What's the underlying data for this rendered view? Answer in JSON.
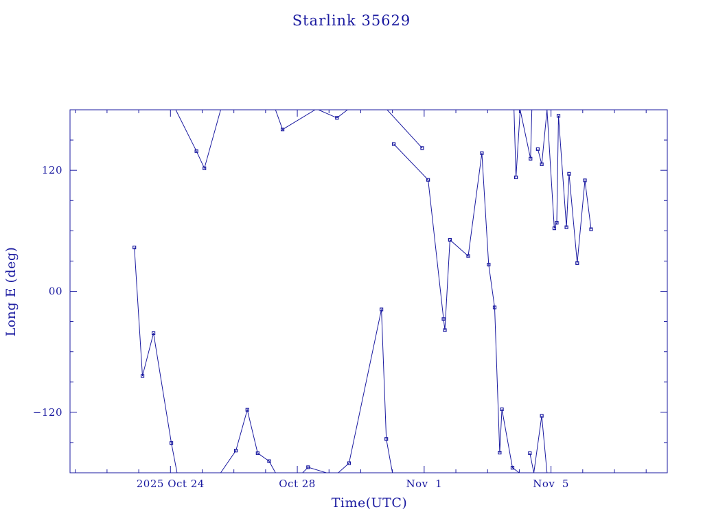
{
  "chart_data": {
    "type": "line",
    "title": "Starlink 35629",
    "xlabel": "Time(UTC)",
    "ylabel": "Long E (deg)",
    "xlim": [
      "2025-10-20T20:00",
      "2025-11-08T16:00"
    ],
    "ylim": [
      -180,
      180
    ],
    "x_tick_labels": [
      {
        "label": "2025 Oct 24",
        "at": "2025-10-24T00:00"
      },
      {
        "label": "Oct 28",
        "at": "2025-10-28T00:00"
      },
      {
        "label": "Nov  1",
        "at": "2025-11-01T00:00"
      },
      {
        "label": "Nov  5",
        "at": "2025-11-05T00:00"
      }
    ],
    "y_tick_labels": [
      {
        "label": "120",
        "value": 120
      },
      {
        "label": "00",
        "value": 0
      },
      {
        "label": "−120",
        "value": -120
      }
    ],
    "grid": false,
    "legend": "none",
    "color": "#1a1aa0",
    "series": [
      {
        "points": [
          [
            "2025-10-22T20:40",
            43.5
          ],
          [
            "2025-10-23T02:50",
            -84
          ],
          [
            "2025-10-23T11:10",
            -41.5
          ],
          [
            "2025-10-24T00:40",
            -150.5
          ],
          [
            "2025-10-24T05:00",
            -180
          ],
          [
            "2025-10-24T04:00",
            180
          ],
          [
            "2025-10-24T19:40",
            139
          ],
          [
            "2025-10-25T01:40",
            122
          ],
          [
            "2025-10-25T14:00",
            180
          ],
          [
            "2025-10-25T14:00",
            -180
          ],
          [
            "2025-10-26T01:30",
            -158
          ],
          [
            "2025-10-26T10:10",
            -117.5
          ],
          [
            "2025-10-26T18:00",
            -160.5
          ],
          [
            "2025-10-27T02:40",
            -168.5
          ],
          [
            "2025-10-27T07:30",
            -180
          ],
          [
            "2025-10-27T07:30",
            180
          ],
          [
            "2025-10-27T12:50",
            160.5
          ],
          [
            "2025-10-28T13:30",
            180
          ],
          [
            "2025-10-28T16:00",
            180
          ],
          [
            "2025-10-29T06:00",
            172
          ],
          [
            "2025-10-29T14:00",
            180
          ],
          [
            "2025-10-28T04:00",
            -180
          ],
          [
            "2025-10-28T08:10",
            -174.5
          ],
          [
            "2025-10-28T22:00",
            -180
          ],
          [
            "2025-10-29T07:00",
            -180
          ],
          [
            "2025-10-29T15:10",
            -170.5
          ],
          [
            "2025-10-30T15:40",
            -18
          ],
          [
            "2025-10-30T19:20",
            -146.5
          ],
          [
            "2025-10-31T00:00",
            -180
          ],
          [
            "2025-10-30T20:00",
            180
          ],
          [
            "2025-10-31T22:30",
            142
          ],
          [
            "2025-10-31T01:00",
            146
          ],
          [
            "2025-11-01T03:00",
            110.5
          ],
          [
            "2025-11-01T14:40",
            -27.5
          ],
          [
            "2025-11-01T15:40",
            -38.5
          ],
          [
            "2025-11-01T19:30",
            51
          ],
          [
            "2025-11-02T09:20",
            35
          ],
          [
            "2025-11-02T19:40",
            137
          ],
          [
            "2025-11-03T00:50",
            26.5
          ],
          [
            "2025-11-03T05:20",
            -16
          ],
          [
            "2025-11-03T09:10",
            -160
          ],
          [
            "2025-11-03T10:50",
            -117
          ],
          [
            "2025-11-03T18:50",
            -175
          ],
          [
            "2025-11-04T00:00",
            -180
          ],
          [
            "2025-11-03T20:00",
            180
          ],
          [
            "2025-11-03T21:30",
            113
          ],
          [
            "2025-11-04T00:40",
            180
          ],
          [
            "2025-11-04T08:30",
            131.5
          ],
          [
            "2025-11-04T09:30",
            180
          ],
          [
            "2025-11-04T18:00",
            -180
          ],
          [
            "2025-11-04T08:00",
            -160.5
          ],
          [
            "2025-11-04T11:00",
            -180
          ],
          [
            "2025-11-04T17:00",
            -123.5
          ],
          [
            "2025-11-04T21:00",
            -180
          ],
          [
            "2025-11-04T20:00",
            180
          ],
          [
            "2025-11-04T14:00",
            141
          ],
          [
            "2025-11-04T17:00",
            126
          ],
          [
            "2025-11-04T21:00",
            180
          ],
          [
            "2025-11-05T02:30",
            62.5
          ],
          [
            "2025-11-05T04:20",
            68
          ],
          [
            "2025-11-05T05:40",
            174
          ],
          [
            "2025-11-05T11:40",
            63.5
          ],
          [
            "2025-11-05T13:40",
            116.5
          ],
          [
            "2025-11-05T19:50",
            28
          ],
          [
            "2025-11-06T01:40",
            110
          ],
          [
            "2025-11-06T06:20",
            61.5
          ]
        ]
      }
    ]
  }
}
